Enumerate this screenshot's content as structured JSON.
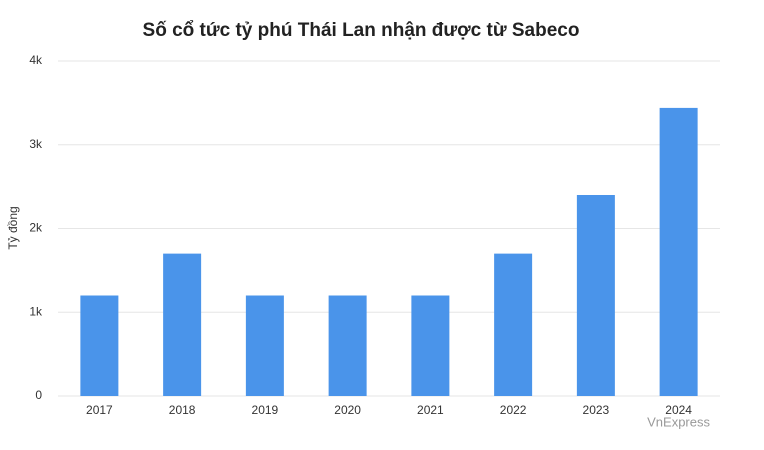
{
  "chart_data": {
    "type": "bar",
    "title": "Số cổ tức tỷ phú Thái Lan nhận được từ Sabeco",
    "y_label": "Tỷ đồng",
    "categories": [
      "2017",
      "2018",
      "2019",
      "2020",
      "2021",
      "2022",
      "2023",
      "2024"
    ],
    "values": [
      1200,
      1700,
      1200,
      1200,
      1200,
      1700,
      2400,
      3440
    ],
    "color": "#4a94ea",
    "ylim": [
      0,
      4000
    ],
    "yticks": [
      0,
      {
        "value": 1000,
        "label": "1k"
      },
      {
        "value": 2000,
        "label": "2k"
      },
      {
        "value": 3000,
        "label": "3k"
      },
      {
        "value": 4000,
        "label": "4k"
      }
    ],
    "grid": true,
    "source": "VnExpress"
  }
}
